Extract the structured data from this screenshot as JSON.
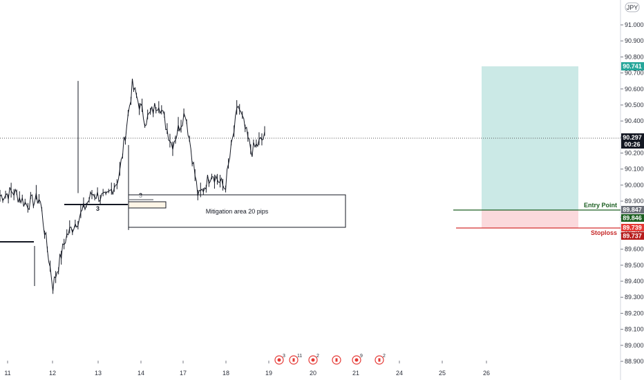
{
  "chart_data": {
    "type": "line",
    "symbol_currency": "JPY",
    "ylim": [
      88.85,
      91.3
    ],
    "y_ticks": [
      "91.000",
      "90.900",
      "90.800",
      "90.700",
      "90.600",
      "90.500",
      "90.400",
      "90.300",
      "90.200",
      "90.100",
      "90.000",
      "89.900",
      "89.800",
      "89.700",
      "89.600",
      "89.500",
      "89.400",
      "89.300",
      "89.200",
      "89.100",
      "89.000",
      "88.900"
    ],
    "x_ticks": [
      "11",
      "12",
      "13",
      "14",
      "17",
      "18",
      "19",
      "20",
      "21",
      "24",
      "25",
      "26"
    ],
    "price_series": {
      "name": "",
      "x": [
        0,
        0.5,
        1,
        1.5,
        2,
        2.5,
        3,
        3.5,
        4,
        4.5,
        5,
        5.5,
        6,
        6.5,
        7,
        7.5,
        8,
        8.5,
        9,
        9.5,
        10
      ],
      "values": [
        89.93,
        89.96,
        89.88,
        89.92,
        89.37,
        89.68,
        89.8,
        89.95,
        89.91,
        90.05,
        90.62,
        90.4,
        90.52,
        90.25,
        90.46,
        89.92,
        90.08,
        89.98,
        90.5,
        90.21,
        90.3
      ]
    },
    "current_price": {
      "value": "90.297",
      "countdown": "00:26"
    },
    "long_position": {
      "target": "90.741",
      "entry": "89.847",
      "stop": "89.739",
      "entry_tag2": "89.846",
      "stop_tag2": "89.737"
    },
    "labels": {
      "entry": "Entry Point",
      "stop": "Stoploss"
    },
    "annotations": {
      "mitigation": "Mitigation area 20 pips",
      "count_a": "3",
      "count_b": "3"
    },
    "events": [
      {
        "kind": "jp",
        "count": "3"
      },
      {
        "kind": "ca",
        "count": "11"
      },
      {
        "kind": "jp",
        "count": "2"
      },
      {
        "kind": "ca",
        "count": ""
      },
      {
        "kind": "jp",
        "count": "9"
      },
      {
        "kind": "ca",
        "count": "2"
      }
    ],
    "colors": {
      "candles": "#131722",
      "profit_zone": "#cbe9e6",
      "loss_zone": "#fbd9dc",
      "entry_line": "#1b5e20",
      "stop_line": "#d32f2f",
      "target_tag": "#26a69a",
      "current_tag": "#131722"
    }
  }
}
